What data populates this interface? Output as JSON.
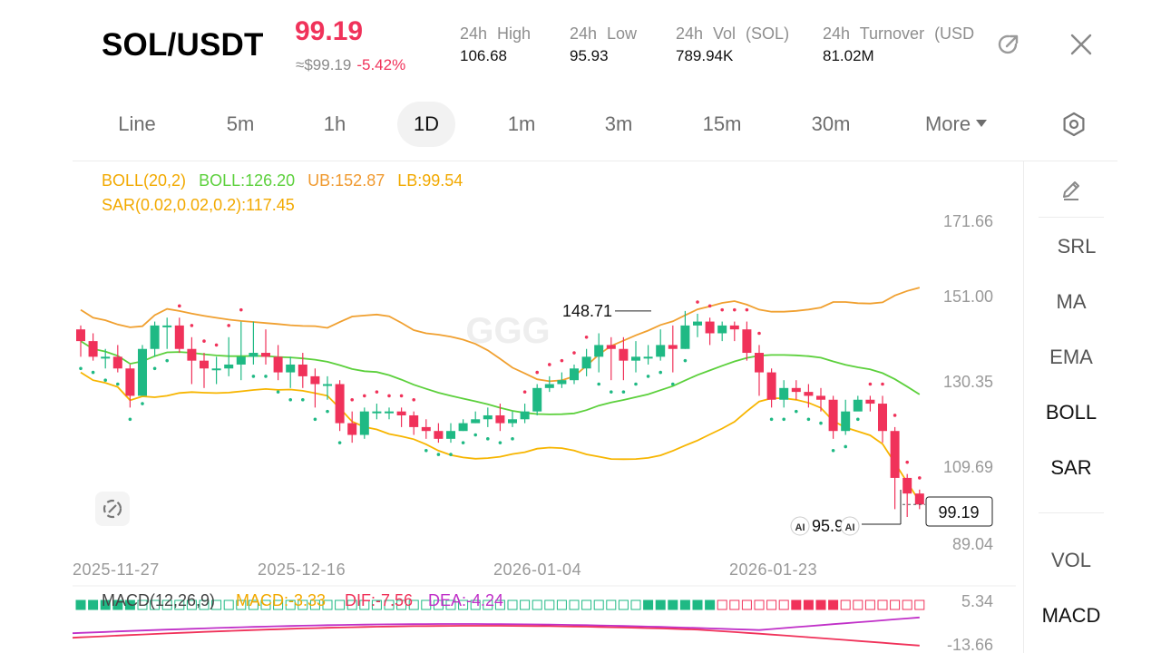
{
  "header": {
    "pair": "SOL/USDT",
    "price": "99.19",
    "fiat_price": "≈$99.19",
    "change_pct": "-5.42%",
    "stats": [
      {
        "label": "24h High",
        "value": "106.68"
      },
      {
        "label": "24h Low",
        "value": "95.93"
      },
      {
        "label": "24h Vol (SOL)",
        "value": "789.94K"
      },
      {
        "label": "24h Turnover (USD",
        "value": "81.02M"
      }
    ],
    "icons": [
      "share-icon",
      "close-icon"
    ]
  },
  "tabs": [
    "Line",
    "5m",
    "1h",
    "1D",
    "1m",
    "3m",
    "15m",
    "30m",
    "More"
  ],
  "active_tab": "1D",
  "side_indicators": {
    "drawing_icon": "pencil-icon",
    "main": [
      "SRL",
      "MA",
      "EMA",
      "BOLL",
      "SAR"
    ],
    "sub": [
      "VOL",
      "MACD"
    ],
    "active": [
      "BOLL",
      "SAR",
      "MACD"
    ]
  },
  "legend": {
    "boll_name": "BOLL(20,2)",
    "boll_mid": "BOLL:126.20",
    "ub": "UB:152.87",
    "lb": "LB:99.54",
    "sar": "SAR(0.02,0.02,0.2):117.45"
  },
  "macd_legend": {
    "name": "MACD(12,26,9)",
    "macd": "MACD:-3.33",
    "dif": "DIF:-7.56",
    "dea": "DEA:-4.24"
  },
  "colors": {
    "up": "#1fb984",
    "down": "#f0325a",
    "boll_mid": "#5cd03c",
    "boll_ub": "#f0a030",
    "boll_lb": "#f7b500",
    "sar": "#f0325a",
    "dif": "#f0325a",
    "dea": "#c030c8",
    "macd_text": "#f2a900"
  },
  "chart_data": {
    "type": "candlestick",
    "y_ticks": [
      "171.66",
      "151.00",
      "130.35",
      "109.69",
      "89.04"
    ],
    "x_ticks": [
      "2025-11-27",
      "2025-12-16",
      "2026-01-04",
      "2026-01-23"
    ],
    "macd_ticks": [
      "5.34",
      "-13.66"
    ],
    "ylim": [
      89.04,
      171.66
    ],
    "high_marker": "148.71",
    "low_marker": "95.93",
    "last_price": "99.19",
    "candles": [
      [
        144,
        141,
        145,
        137
      ],
      [
        141,
        137,
        143,
        136
      ],
      [
        137,
        137,
        139,
        134
      ],
      [
        137,
        134,
        140,
        133
      ],
      [
        134,
        127,
        135,
        124
      ],
      [
        127,
        139,
        140,
        128
      ],
      [
        139,
        145,
        146,
        137
      ],
      [
        145,
        145,
        147,
        139
      ],
      [
        145,
        139,
        147,
        138
      ],
      [
        139,
        136,
        142,
        130
      ],
      [
        136,
        134,
        138,
        129
      ],
      [
        134,
        134,
        137,
        130
      ],
      [
        134,
        135,
        142,
        132
      ],
      [
        135,
        137,
        146,
        131
      ],
      [
        137,
        138,
        146,
        135
      ],
      [
        138,
        137,
        144,
        135
      ],
      [
        137,
        133,
        140,
        131
      ],
      [
        133,
        135,
        137,
        129
      ],
      [
        135,
        132,
        138,
        129
      ],
      [
        132,
        130,
        134,
        124
      ],
      [
        130,
        130,
        132,
        126
      ],
      [
        130,
        120,
        131,
        118
      ],
      [
        120,
        117,
        123,
        115
      ],
      [
        117,
        123,
        124,
        116
      ],
      [
        123,
        123,
        125,
        121
      ],
      [
        123,
        123,
        124,
        121
      ],
      [
        123,
        122,
        124,
        119
      ],
      [
        122,
        119,
        123,
        117
      ],
      [
        119,
        118,
        121,
        116
      ],
      [
        118,
        116,
        120,
        115
      ],
      [
        116,
        118,
        120,
        115
      ],
      [
        118,
        120,
        121,
        118
      ],
      [
        120,
        121,
        123,
        120
      ],
      [
        121,
        122,
        124,
        119
      ],
      [
        122,
        120,
        125,
        118
      ],
      [
        120,
        121,
        123,
        119
      ],
      [
        121,
        123,
        125,
        120
      ],
      [
        123,
        129,
        130,
        122
      ],
      [
        129,
        130,
        132,
        128
      ],
      [
        130,
        131,
        133,
        129
      ],
      [
        131,
        134,
        135,
        130
      ],
      [
        134,
        137,
        139,
        132
      ],
      [
        137,
        140,
        143,
        133
      ],
      [
        140,
        139,
        142,
        131
      ],
      [
        139,
        136,
        142,
        131
      ],
      [
        136,
        137,
        141,
        133
      ],
      [
        137,
        137,
        140,
        135
      ],
      [
        137,
        140,
        144,
        136
      ],
      [
        140,
        139,
        145,
        133
      ],
      [
        139,
        145,
        148.71,
        139
      ],
      [
        145,
        146,
        148,
        142
      ],
      [
        146,
        143,
        147,
        140
      ],
      [
        143,
        145,
        146,
        141
      ],
      [
        145,
        144,
        146,
        141
      ],
      [
        144,
        138,
        146,
        136
      ],
      [
        138,
        133,
        140,
        127
      ],
      [
        133,
        126,
        134,
        124
      ],
      [
        126,
        129,
        131,
        124
      ],
      [
        129,
        128,
        131,
        126
      ],
      [
        128,
        127,
        130,
        124
      ],
      [
        127,
        126,
        129,
        123
      ],
      [
        126,
        118,
        127,
        116
      ],
      [
        118,
        123,
        126,
        117
      ],
      [
        123,
        126,
        127,
        124
      ],
      [
        126,
        125,
        127,
        123
      ],
      [
        125,
        118,
        127,
        115
      ],
      [
        118,
        106,
        119,
        98
      ],
      [
        106,
        102,
        107,
        96
      ],
      [
        102,
        99.19,
        103,
        98
      ]
    ]
  }
}
